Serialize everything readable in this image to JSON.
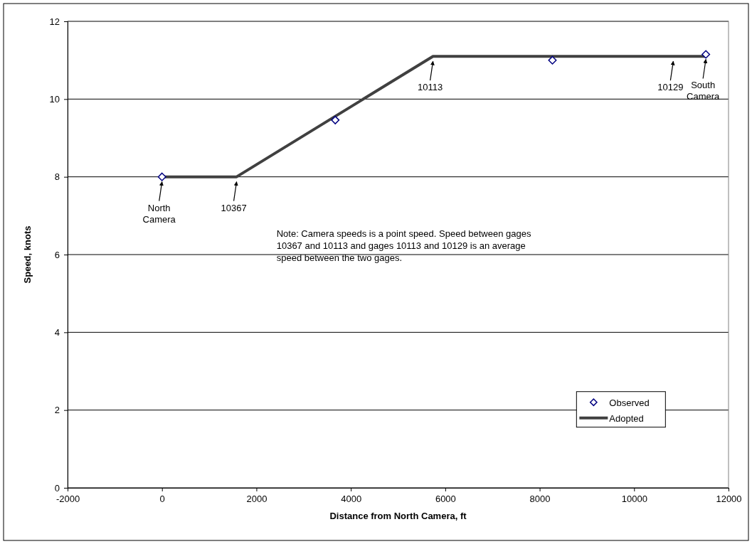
{
  "chart_data": {
    "type": "line",
    "xlabel": "Distance from North Camera, ft",
    "ylabel": "Speed, knots",
    "xlim": [
      -2000,
      12000
    ],
    "xticks": [
      -2000,
      0,
      2000,
      4000,
      6000,
      8000,
      10000,
      12000
    ],
    "ylim": [
      0,
      12
    ],
    "yticks": [
      0,
      2,
      4,
      6,
      8,
      10,
      12
    ],
    "grid": "y",
    "legend": "bottom right",
    "series": [
      {
        "name": "Observed",
        "type": "scatter",
        "marker": "diamond",
        "color": "#000080",
        "x": [
          0,
          3670,
          8270,
          11520
        ],
        "values": [
          8.0,
          9.46,
          11.0,
          11.15
        ]
      },
      {
        "name": "Adopted",
        "marker": "none",
        "line_style": "solid",
        "color": "#404040",
        "x": [
          0,
          1580,
          5740,
          11520
        ],
        "values": [
          8.0,
          8.0,
          11.1,
          11.1
        ]
      }
    ],
    "annotations": [
      {
        "text": "North Camera",
        "x": 0,
        "y": 8.0
      },
      {
        "text": "10367",
        "x": 1580,
        "y": 8.0
      },
      {
        "text": "10113",
        "x": 5740,
        "y": 11.1
      },
      {
        "text": "10129",
        "x": 10830,
        "y": 11.1
      },
      {
        "text": "South Camera",
        "x": 11520,
        "y": 11.15
      },
      "Note: Camera speeds is a point speed. Speed between gages 10367 and 10113 and gages 10113 and 10129 is an average speed between the two gages."
    ]
  }
}
